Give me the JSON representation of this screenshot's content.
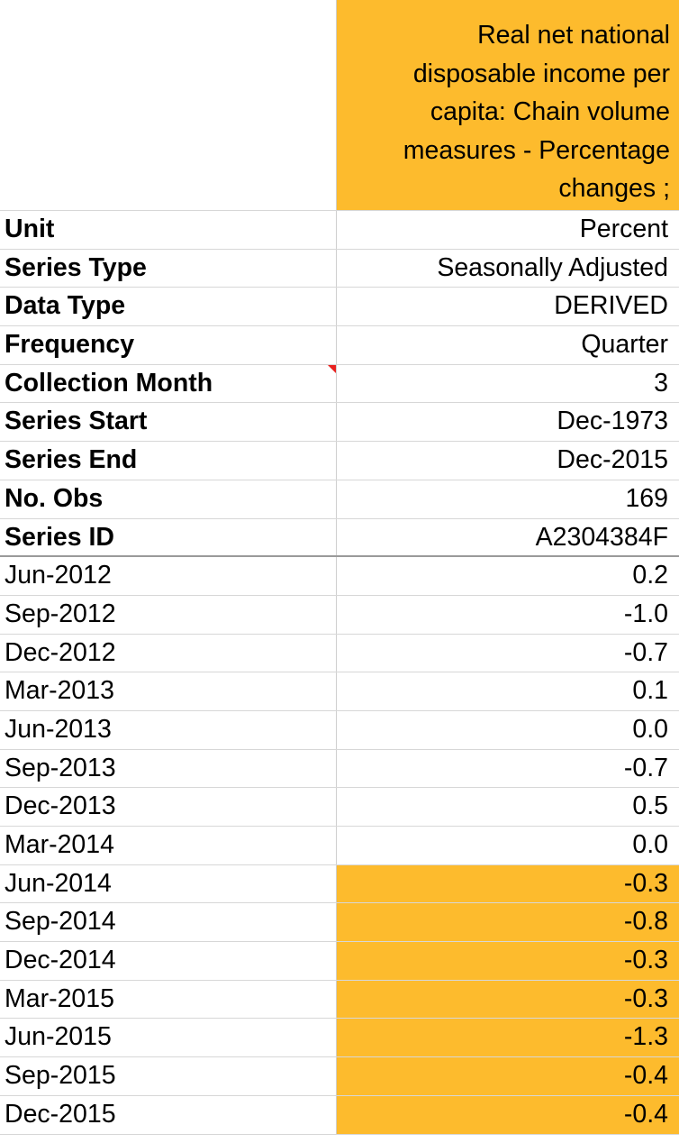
{
  "header": {
    "series_title": "Real net national\ndisposable income per\ncapita: Chain volume\nmeasures - Percentage\nchanges ;"
  },
  "metadata": [
    {
      "label": "Unit",
      "value": "Percent"
    },
    {
      "label": "Series Type",
      "value": "Seasonally Adjusted"
    },
    {
      "label": "Data Type",
      "value": "DERIVED"
    },
    {
      "label": "Frequency",
      "value": "Quarter"
    },
    {
      "label": "Collection Month",
      "value": "3"
    },
    {
      "label": "Series Start",
      "value": "Dec-1973"
    },
    {
      "label": "Series End",
      "value": "Dec-2015"
    },
    {
      "label": "No. Obs",
      "value": "169"
    },
    {
      "label": "Series ID",
      "value": "A2304384F"
    }
  ],
  "observations": [
    {
      "date": "Jun-2012",
      "value": "0.2",
      "highlighted": false
    },
    {
      "date": "Sep-2012",
      "value": "-1.0",
      "highlighted": false
    },
    {
      "date": "Dec-2012",
      "value": "-0.7",
      "highlighted": false
    },
    {
      "date": "Mar-2013",
      "value": "0.1",
      "highlighted": false
    },
    {
      "date": "Jun-2013",
      "value": "0.0",
      "highlighted": false
    },
    {
      "date": "Sep-2013",
      "value": "-0.7",
      "highlighted": false
    },
    {
      "date": "Dec-2013",
      "value": "0.5",
      "highlighted": false
    },
    {
      "date": "Mar-2014",
      "value": "0.0",
      "highlighted": false
    },
    {
      "date": "Jun-2014",
      "value": "-0.3",
      "highlighted": true
    },
    {
      "date": "Sep-2014",
      "value": "-0.8",
      "highlighted": true
    },
    {
      "date": "Dec-2014",
      "value": "-0.3",
      "highlighted": true
    },
    {
      "date": "Mar-2015",
      "value": "-0.3",
      "highlighted": true
    },
    {
      "date": "Jun-2015",
      "value": "-1.3",
      "highlighted": true
    },
    {
      "date": "Sep-2015",
      "value": "-0.4",
      "highlighted": true
    },
    {
      "date": "Dec-2015",
      "value": "-0.4",
      "highlighted": true
    }
  ],
  "colors": {
    "highlight": "#fdbb2d",
    "gridline": "#d7d7d7",
    "comment_marker": "#e8211f"
  }
}
